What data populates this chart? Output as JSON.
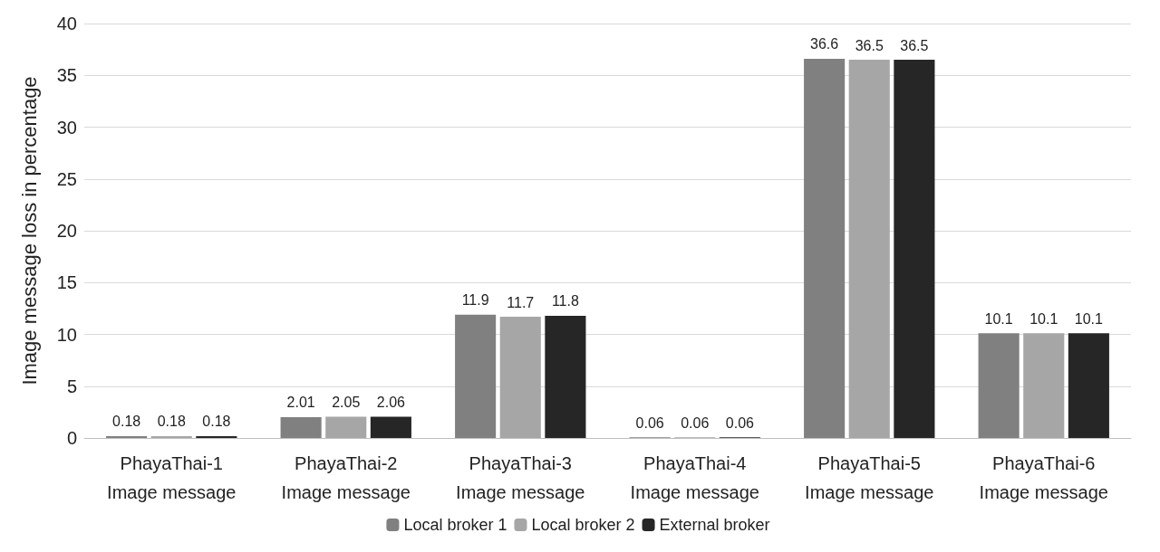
{
  "chart_data": {
    "type": "bar",
    "ylabel": "Image message loss in percentage",
    "categories": [
      "PhayaThai-1\nImage message",
      "PhayaThai-2\nImage message",
      "PhayaThai-3\nImage message",
      "PhayaThai-4\nImage message",
      "PhayaThai-5\nImage message",
      "PhayaThai-6\nImage message"
    ],
    "series": [
      {
        "name": "Local broker 1",
        "color": "#808080",
        "values": [
          0.18,
          2.01,
          11.9,
          0.06,
          36.6,
          10.1
        ]
      },
      {
        "name": "Local broker 2",
        "color": "#a6a6a6",
        "values": [
          0.18,
          2.05,
          11.7,
          0.06,
          36.5,
          10.1
        ]
      },
      {
        "name": "External broker",
        "color": "#262626",
        "values": [
          0.18,
          2.06,
          11.8,
          0.06,
          36.5,
          10.1
        ]
      }
    ],
    "ylim": [
      0,
      40
    ],
    "yticks": [
      0,
      5,
      10,
      15,
      20,
      25,
      30,
      35,
      40
    ],
    "grid": "y",
    "legend": "bottom",
    "data_labels": true
  }
}
